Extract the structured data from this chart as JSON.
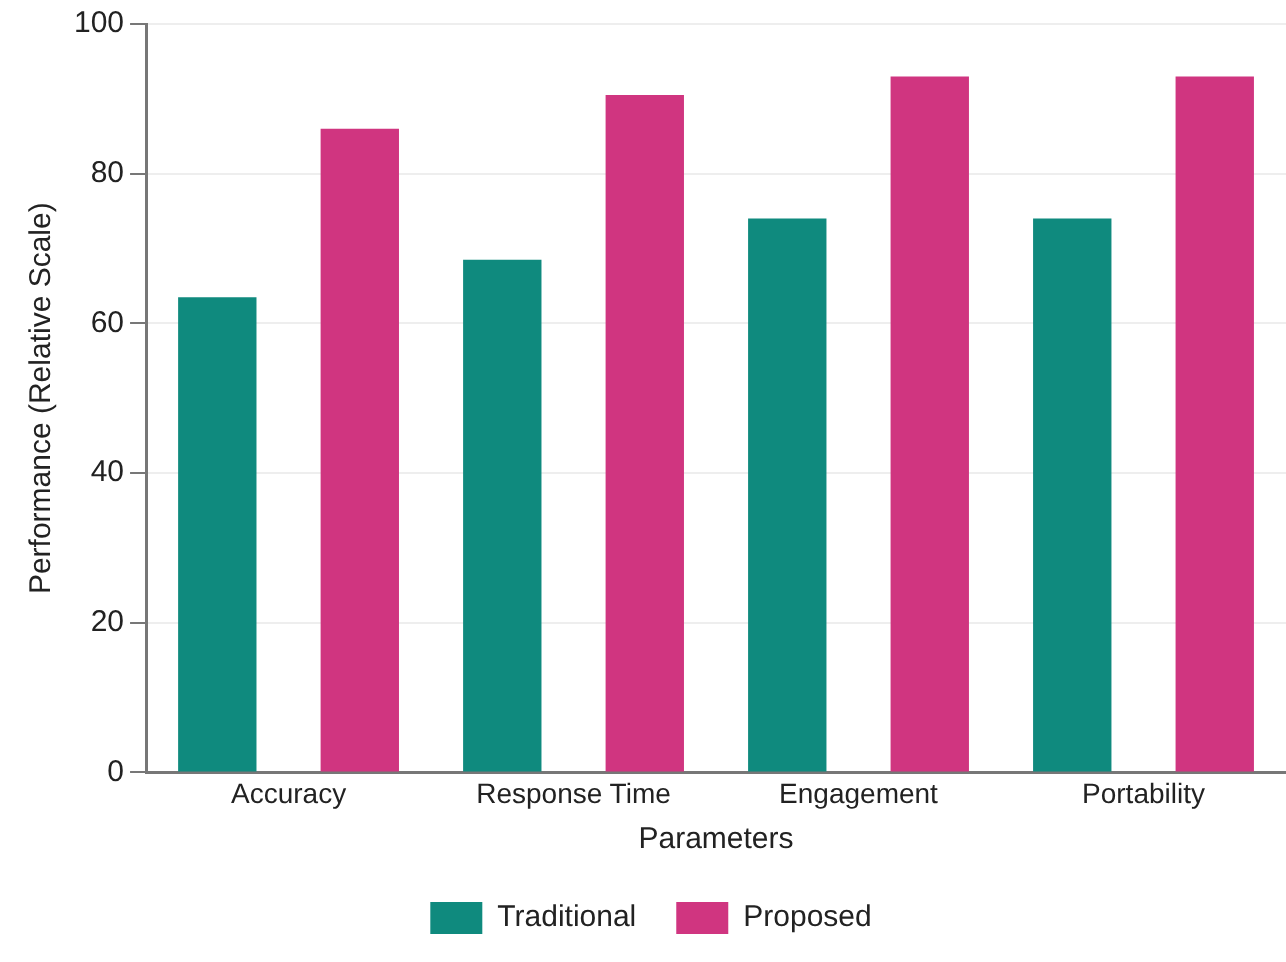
{
  "chart_data": {
    "type": "bar",
    "xlabel": "Parameters",
    "ylabel": "Performance (Relative Scale)",
    "categories": [
      "Accuracy",
      "Response Time",
      "Engagement",
      "Portability"
    ],
    "series": [
      {
        "name": "Traditional",
        "color": "#0f8a7e",
        "values": [
          63.5,
          68.5,
          74,
          74
        ]
      },
      {
        "name": "Proposed",
        "color": "#d03580",
        "values": [
          86,
          90.5,
          93,
          93
        ]
      }
    ],
    "ylim": [
      0,
      100
    ],
    "yticks": [
      0,
      20,
      40,
      60,
      80,
      100
    ],
    "grid": "y",
    "legend": "bottom"
  }
}
